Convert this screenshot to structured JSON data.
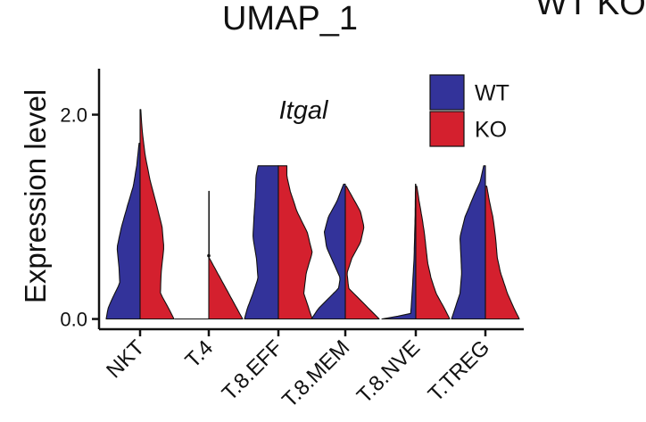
{
  "header": {
    "title": "UMAP_1",
    "corner_text": "WT  KO"
  },
  "chart_data": {
    "type": "split-violin",
    "title": "Itgal",
    "ylabel": "Expression level",
    "ylim": [
      -0.1,
      2.45
    ],
    "yticks": [
      0.0,
      2.0
    ],
    "ytick_labels": [
      "0.0",
      "2.0"
    ],
    "categories": [
      "NKT",
      "T.4",
      "T.8.EFF",
      "T.8.MEM",
      "T.8.NVE",
      "T.TREG"
    ],
    "legend": {
      "position": "top-right",
      "entries": [
        {
          "name": "WT",
          "color": "#33339a"
        },
        {
          "name": "KO",
          "color": "#d4202e"
        }
      ]
    },
    "series": [
      {
        "name": "WT",
        "color": "#33339a",
        "max": [
          1.72,
          0.0,
          1.5,
          1.32,
          1.32,
          1.5
        ],
        "profiles": [
          [
            [
              0.0,
              1.0
            ],
            [
              0.1,
              0.95
            ],
            [
              0.2,
              0.82
            ],
            [
              0.35,
              0.6
            ],
            [
              0.5,
              0.62
            ],
            [
              0.7,
              0.68
            ],
            [
              0.9,
              0.55
            ],
            [
              1.1,
              0.38
            ],
            [
              1.3,
              0.2
            ],
            [
              1.5,
              0.1
            ],
            [
              1.72,
              0.03
            ]
          ],
          [
            [
              0.0,
              1.0
            ]
          ],
          [
            [
              0.0,
              1.0
            ],
            [
              0.1,
              0.92
            ],
            [
              0.25,
              0.75
            ],
            [
              0.4,
              0.6
            ],
            [
              0.6,
              0.65
            ],
            [
              0.8,
              0.75
            ],
            [
              1.0,
              0.72
            ],
            [
              1.2,
              0.68
            ],
            [
              1.4,
              0.66
            ],
            [
              1.5,
              0.6
            ]
          ],
          [
            [
              0.0,
              1.0
            ],
            [
              0.1,
              0.8
            ],
            [
              0.2,
              0.5
            ],
            [
              0.3,
              0.2
            ],
            [
              0.4,
              0.15
            ],
            [
              0.55,
              0.35
            ],
            [
              0.7,
              0.55
            ],
            [
              0.85,
              0.62
            ],
            [
              1.0,
              0.5
            ],
            [
              1.15,
              0.25
            ],
            [
              1.32,
              0.05
            ]
          ],
          [
            [
              0.0,
              1.0
            ],
            [
              0.05,
              0.15
            ],
            [
              0.3,
              0.1
            ],
            [
              0.6,
              0.05
            ],
            [
              1.0,
              0.02
            ],
            [
              1.32,
              0.01
            ]
          ],
          [
            [
              0.0,
              1.0
            ],
            [
              0.1,
              0.9
            ],
            [
              0.25,
              0.75
            ],
            [
              0.45,
              0.7
            ],
            [
              0.6,
              0.72
            ],
            [
              0.8,
              0.75
            ],
            [
              1.0,
              0.6
            ],
            [
              1.2,
              0.35
            ],
            [
              1.35,
              0.15
            ],
            [
              1.5,
              0.05
            ]
          ]
        ]
      },
      {
        "name": "KO",
        "color": "#d4202e",
        "max": [
          2.05,
          1.25,
          1.5,
          1.3,
          1.3,
          1.3
        ],
        "profiles": [
          [
            [
              0.0,
              1.0
            ],
            [
              0.1,
              0.85
            ],
            [
              0.25,
              0.6
            ],
            [
              0.45,
              0.62
            ],
            [
              0.7,
              0.7
            ],
            [
              0.9,
              0.65
            ],
            [
              1.1,
              0.5
            ],
            [
              1.35,
              0.3
            ],
            [
              1.6,
              0.15
            ],
            [
              1.85,
              0.06
            ],
            [
              2.05,
              0.02
            ]
          ],
          [
            [
              0.0,
              1.0
            ],
            [
              0.6,
              0.01
            ],
            [
              1.25,
              0.01
            ]
          ],
          [
            [
              0.0,
              1.0
            ],
            [
              0.1,
              0.9
            ],
            [
              0.25,
              0.75
            ],
            [
              0.45,
              0.82
            ],
            [
              0.65,
              1.0
            ],
            [
              0.85,
              0.85
            ],
            [
              1.05,
              0.55
            ],
            [
              1.25,
              0.35
            ],
            [
              1.4,
              0.25
            ],
            [
              1.5,
              0.25
            ]
          ],
          [
            [
              0.0,
              1.0
            ],
            [
              0.1,
              0.7
            ],
            [
              0.2,
              0.4
            ],
            [
              0.3,
              0.1
            ],
            [
              0.45,
              0.05
            ],
            [
              0.6,
              0.2
            ],
            [
              0.75,
              0.45
            ],
            [
              0.9,
              0.55
            ],
            [
              1.05,
              0.45
            ],
            [
              1.2,
              0.2
            ],
            [
              1.3,
              0.03
            ]
          ],
          [
            [
              0.0,
              1.0
            ],
            [
              0.1,
              0.85
            ],
            [
              0.25,
              0.6
            ],
            [
              0.4,
              0.45
            ],
            [
              0.55,
              0.35
            ],
            [
              0.7,
              0.3
            ],
            [
              0.85,
              0.25
            ],
            [
              1.0,
              0.18
            ],
            [
              1.15,
              0.1
            ],
            [
              1.3,
              0.03
            ]
          ],
          [
            [
              0.0,
              1.0
            ],
            [
              0.1,
              0.85
            ],
            [
              0.25,
              0.65
            ],
            [
              0.45,
              0.45
            ],
            [
              0.6,
              0.35
            ],
            [
              0.8,
              0.3
            ],
            [
              1.0,
              0.22
            ],
            [
              1.15,
              0.12
            ],
            [
              1.3,
              0.04
            ]
          ]
        ]
      }
    ]
  }
}
